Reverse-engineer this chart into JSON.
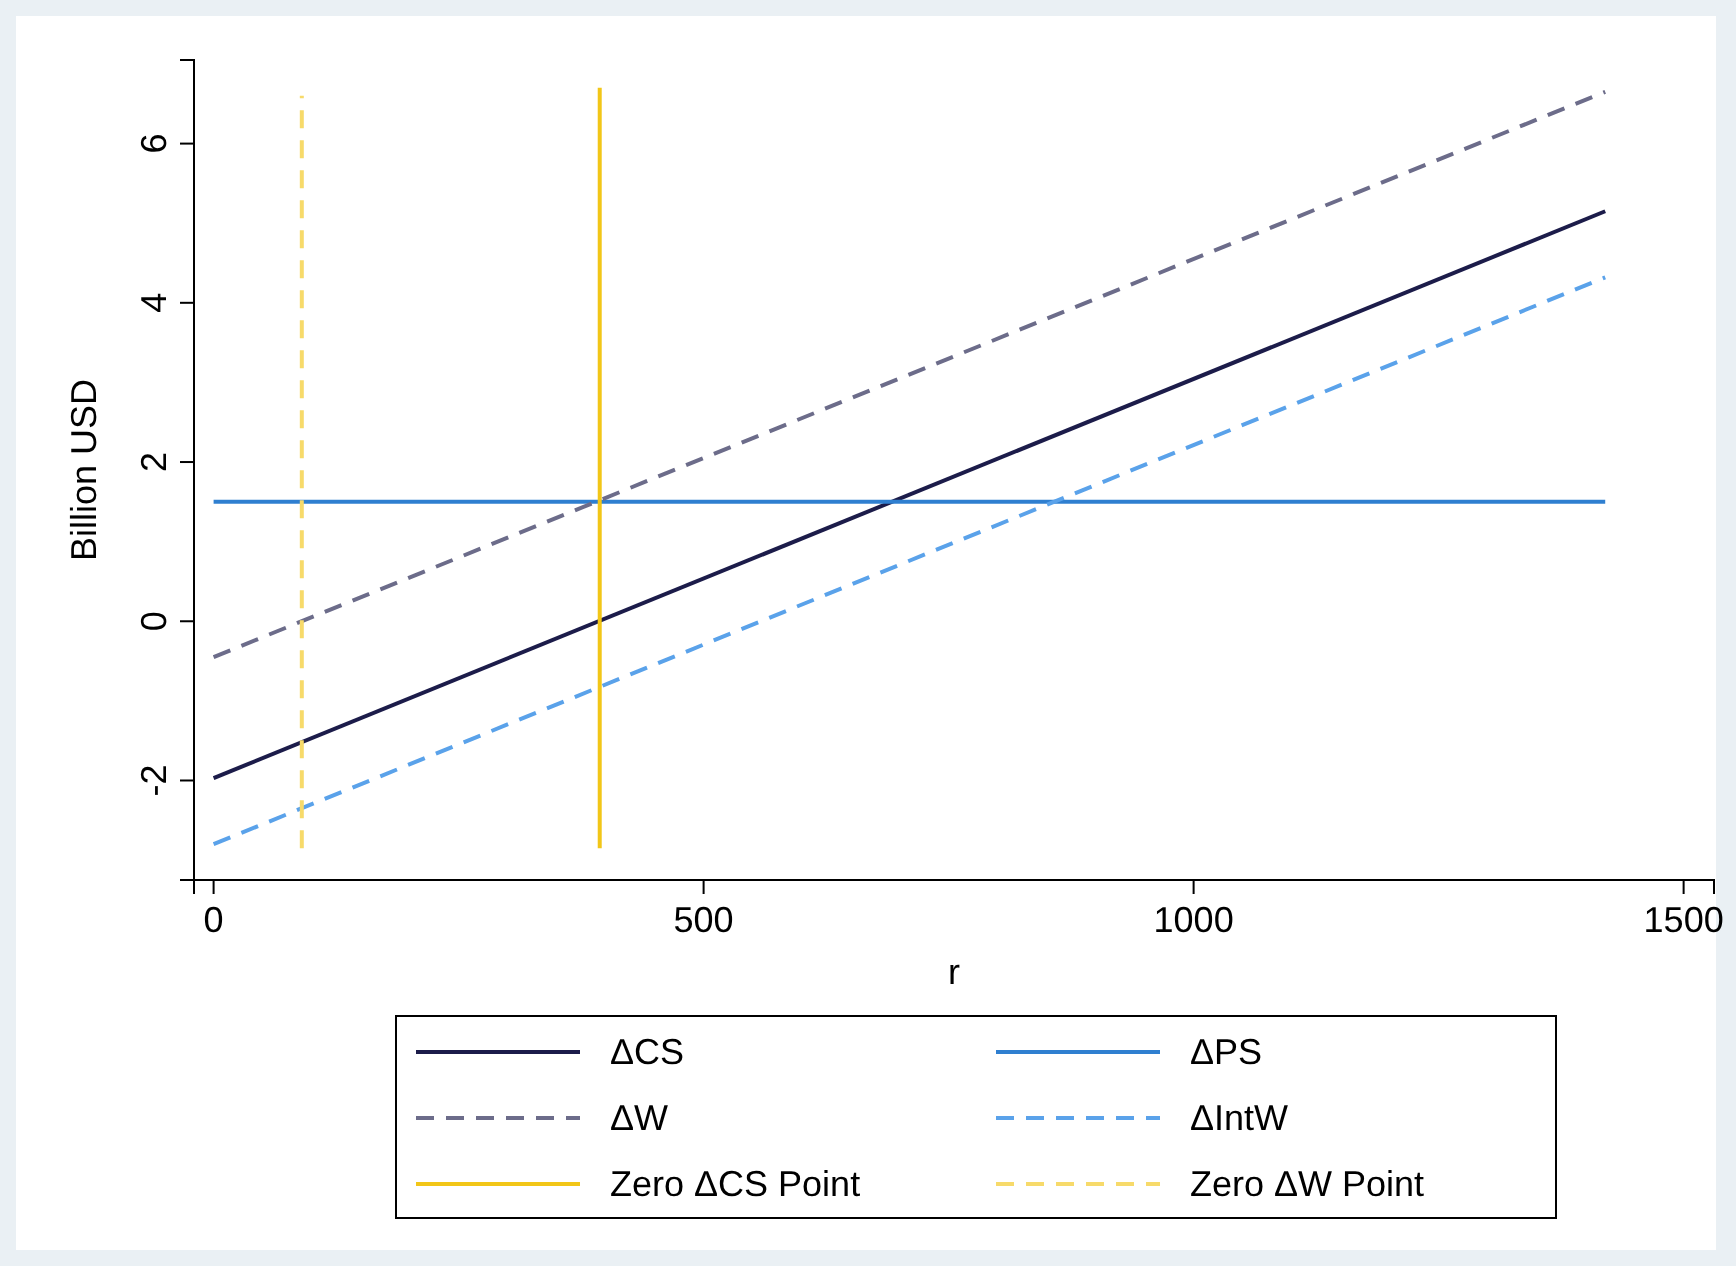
{
  "chart_data": {
    "type": "line",
    "xlabel": "r",
    "ylabel": "Billion USD",
    "xlim": [
      -20,
      1531
    ],
    "ylim": [
      -3.25,
      7.05
    ],
    "xticks": [
      0,
      500,
      1000,
      1500
    ],
    "yticks": [
      -2,
      0,
      2,
      4,
      6
    ],
    "grid": false,
    "legend": "bottom",
    "marker": "none",
    "series": [
      {
        "name": "ΔCS",
        "color": "#1c1c4a",
        "line_style": "solid",
        "x": [
          0,
          1420
        ],
        "values": [
          -1.97,
          5.15
        ]
      },
      {
        "name": "ΔPS",
        "color": "#2f7fd0",
        "line_style": "solid",
        "x": [
          0,
          1420
        ],
        "values": [
          1.5,
          1.5
        ]
      },
      {
        "name": "ΔW",
        "color": "#6c6c8a",
        "line_style": "dashed",
        "x": [
          0,
          1420
        ],
        "values": [
          -0.45,
          6.65
        ]
      },
      {
        "name": "ΔIntW",
        "color": "#5aa2ea",
        "line_style": "dashed",
        "x": [
          0,
          1420
        ],
        "values": [
          -2.8,
          4.32
        ]
      },
      {
        "name": "Zero ΔCS Point",
        "color": "#f2c618",
        "line_style": "solid",
        "x": [
          394,
          394
        ],
        "values": [
          -2.85,
          6.7
        ]
      },
      {
        "name": "Zero ΔW Point",
        "color": "#f7da6a",
        "line_style": "dashed",
        "x": [
          90,
          90
        ],
        "values": [
          -2.85,
          6.6
        ]
      }
    ]
  }
}
